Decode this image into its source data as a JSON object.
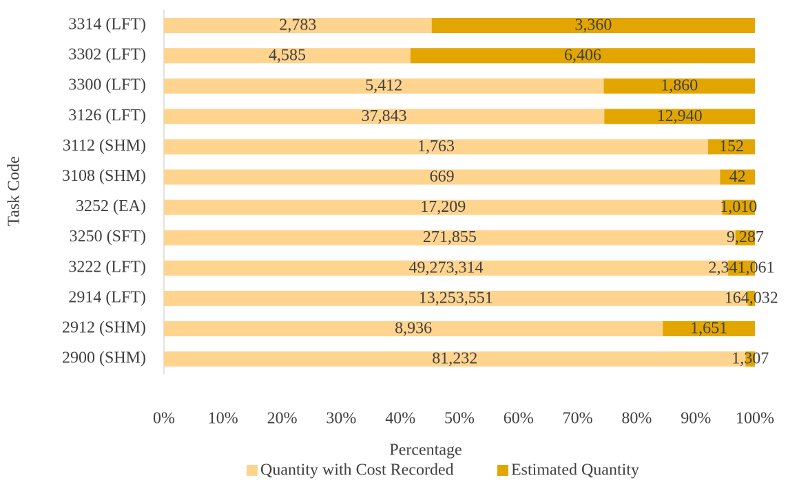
{
  "chart_data": {
    "type": "bar",
    "orientation": "horizontal",
    "stacking": "percent",
    "xlabel": "Percentage",
    "ylabel": "Task Code",
    "categories": [
      "3314 (LFT)",
      "3302 (LFT)",
      "3300 (LFT)",
      "3126 (LFT)",
      "3112 (SHM)",
      "3108 (SHM)",
      "3252 (EA)",
      "3250 (SFT)",
      "3222 (LFT)",
      "2914 (LFT)",
      "2912 (SHM)",
      "2900 (SHM)"
    ],
    "series": [
      {
        "name": "Quantity with Cost Recorded",
        "color": "#ffd48f",
        "values": [
          2783,
          4585,
          5412,
          37843,
          1763,
          669,
          17209,
          271855,
          49273314,
          13253551,
          8936,
          81232
        ],
        "value_labels": [
          "2,783",
          "4,585",
          "5,412",
          "37,843",
          "1,763",
          "669",
          "17,209",
          "271,855",
          "49,273,314",
          "13,253,551",
          "8,936",
          "81,232"
        ]
      },
      {
        "name": "Estimated Quantity",
        "color": "#e3a600",
        "values": [
          3360,
          6406,
          1860,
          12940,
          152,
          42,
          1010,
          9287,
          2341061,
          164032,
          1651,
          1307
        ],
        "value_labels": [
          "3,360",
          "6,406",
          "1,860",
          "12,940",
          "152",
          "42",
          "1,010",
          "9,287",
          "2,341,061",
          "164,032",
          "1,651",
          "1,307"
        ]
      }
    ],
    "xlim": [
      0,
      100
    ],
    "xticks": [
      {
        "value": 0,
        "label": "0%"
      },
      {
        "value": 10,
        "label": "10%"
      },
      {
        "value": 20,
        "label": "20%"
      },
      {
        "value": 30,
        "label": "30%"
      },
      {
        "value": 40,
        "label": "40%"
      },
      {
        "value": 50,
        "label": "50%"
      },
      {
        "value": 60,
        "label": "60%"
      },
      {
        "value": 70,
        "label": "70%"
      },
      {
        "value": 80,
        "label": "80%"
      },
      {
        "value": 90,
        "label": "90%"
      },
      {
        "value": 100,
        "label": "100%"
      }
    ],
    "grid": false,
    "legend": "bottom"
  }
}
